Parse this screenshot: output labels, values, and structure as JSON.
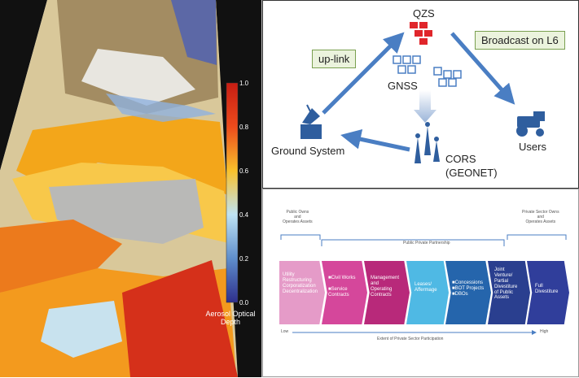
{
  "aerosol_map": {
    "colorbar_ticks": [
      "1.0",
      "0.8",
      "0.6",
      "0.4",
      "0.2",
      "0.0"
    ],
    "colorbar_label": "Aerosol Optical Depth",
    "colors": {
      "low": "#2b3a9a",
      "mid": "#9ed0ea",
      "high": "#d32011"
    }
  },
  "qzss_diagram": {
    "qzs": "QZS",
    "gnss": "GNSS",
    "uplink": "up-link",
    "broadcast": "Broadcast on L6",
    "ground_system": "Ground System",
    "users": "Users",
    "cors": "CORS",
    "geonet": "(GEONET)",
    "colors": {
      "arrow": "#4a7ec3",
      "qzs": "#e0262b",
      "box_fill": "#ebf3dd",
      "box_border": "#7aa050"
    },
    "icons": [
      "satellite-dish-icon",
      "tractor-icon",
      "antenna-tower-icon"
    ]
  },
  "ppp_spectrum": {
    "top_left": "Public Owns\nand\nOperates Assets",
    "top_middle": "Public Private Partnership",
    "top_right": "Private Sector Owns\nand\nOperates Assets",
    "stages": [
      {
        "text": "Utility\nRestructuring\nCorporatization\nDecentralization",
        "color": "#e59bc8"
      },
      {
        "text": "■Civil Works\n\n■Service\nContracts",
        "color": "#d5479b"
      },
      {
        "text": "Management\nand\nOperating\nContracts",
        "color": "#b8297a"
      },
      {
        "text": "Leases/\nAffermage",
        "color": "#4fb9e4"
      },
      {
        "text": "■Concessions\n■BOT Projects\n■DBOs",
        "color": "#2565ac"
      },
      {
        "text": "Joint\nVenture/\nPartial\nDivestiture\nof Public\nAssets",
        "color": "#2a3f8f"
      },
      {
        "text": "Full\nDivestiture",
        "color": "#303e9b"
      }
    ],
    "axis_low": "Low",
    "axis_high": "High",
    "axis_label": "Extent of Private Sector Participation"
  }
}
